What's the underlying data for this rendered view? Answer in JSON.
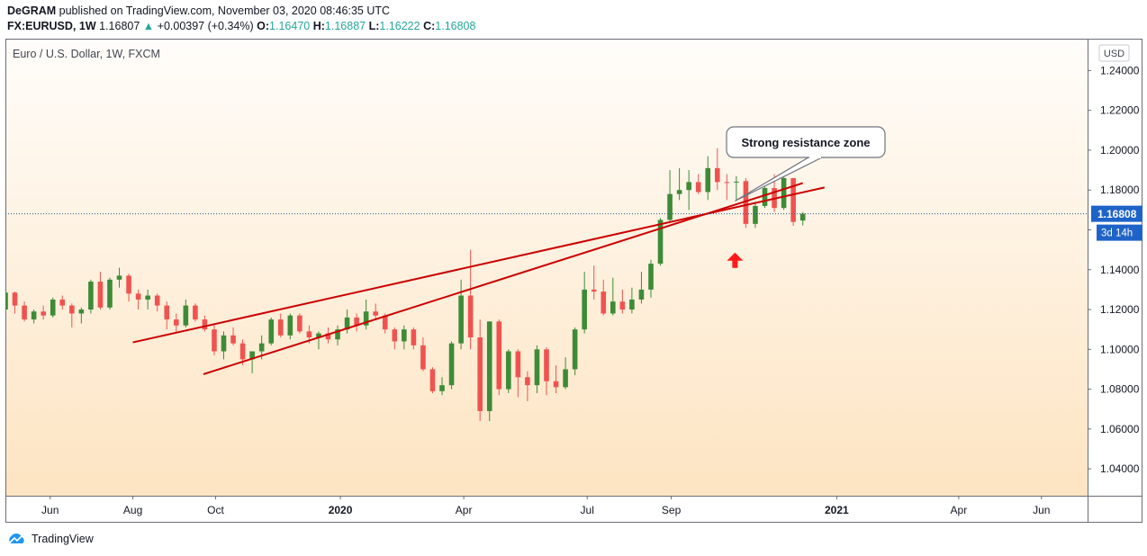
{
  "header": {
    "author": "DeGRAM",
    "published_text": "published on TradingView.com, November 03, 2020 08:46:35 UTC",
    "symbol": "FX:EURUSD, 1W",
    "last": "1.16807",
    "change": "+0.00397 (+0.34%)",
    "open_label": "O:",
    "open": "1.16470",
    "high_label": "H:",
    "high": "1.16887",
    "low_label": "L:",
    "low": "1.16222",
    "close_label": "C:",
    "close": "1.16808"
  },
  "footer": {
    "brand": "TradingView"
  },
  "colors": {
    "up": "#3d8b37",
    "down": "#ef5350",
    "trend": "#cc0000",
    "axis_label_bg": "#1e63c8"
  },
  "chart_data": {
    "type": "candlestick",
    "title": "Euro / U.S. Dollar, 1W, FXCM",
    "currency": "USD",
    "ylim": [
      1.0265,
      1.256
    ],
    "xlim": [
      "2019-04-29",
      "2021-07-05"
    ],
    "y_ticks": [
      "1.04000",
      "1.06000",
      "1.08000",
      "1.10000",
      "1.12000",
      "1.14000",
      "1.16000",
      "1.18000",
      "1.20000",
      "1.22000",
      "1.24000"
    ],
    "x_ticks": [
      {
        "date": "2019-06-01",
        "label": "Jun",
        "bold": false
      },
      {
        "date": "2019-08-01",
        "label": "Aug",
        "bold": false
      },
      {
        "date": "2019-10-01",
        "label": "Oct",
        "bold": false
      },
      {
        "date": "2020-01-01",
        "label": "2020",
        "bold": true
      },
      {
        "date": "2020-04-01",
        "label": "Apr",
        "bold": false
      },
      {
        "date": "2020-07-01",
        "label": "Jul",
        "bold": false
      },
      {
        "date": "2020-09-01",
        "label": "Sep",
        "bold": false
      },
      {
        "date": "2021-01-01",
        "label": "2021",
        "bold": true
      },
      {
        "date": "2021-04-01",
        "label": "Apr",
        "bold": false
      },
      {
        "date": "2021-06-01",
        "label": "Jun",
        "bold": false
      }
    ],
    "start_date": "2019-04-29",
    "candles": [
      [
        1.12,
        1.129,
        1.119,
        1.1285
      ],
      [
        1.1285,
        1.129,
        1.118,
        1.122
      ],
      [
        1.122,
        1.124,
        1.114,
        1.115
      ],
      [
        1.115,
        1.12,
        1.113,
        1.119
      ],
      [
        1.119,
        1.122,
        1.115,
        1.117
      ],
      [
        1.117,
        1.126,
        1.116,
        1.125
      ],
      [
        1.125,
        1.127,
        1.12,
        1.122
      ],
      [
        1.122,
        1.123,
        1.111,
        1.118
      ],
      [
        1.118,
        1.121,
        1.113,
        1.12
      ],
      [
        1.12,
        1.135,
        1.118,
        1.134
      ],
      [
        1.134,
        1.139,
        1.12,
        1.121
      ],
      [
        1.121,
        1.136,
        1.12,
        1.135
      ],
      [
        1.135,
        1.141,
        1.131,
        1.137
      ],
      [
        1.137,
        1.138,
        1.124,
        1.128
      ],
      [
        1.128,
        1.13,
        1.12,
        1.125
      ],
      [
        1.125,
        1.13,
        1.12,
        1.127
      ],
      [
        1.127,
        1.128,
        1.119,
        1.122
      ],
      [
        1.122,
        1.124,
        1.11,
        1.115
      ],
      [
        1.115,
        1.118,
        1.108,
        1.112
      ],
      [
        1.112,
        1.125,
        1.111,
        1.122
      ],
      [
        1.122,
        1.123,
        1.114,
        1.115
      ],
      [
        1.115,
        1.117,
        1.109,
        1.11
      ],
      [
        1.11,
        1.113,
        1.097,
        1.099
      ],
      [
        1.099,
        1.109,
        1.095,
        1.107
      ],
      [
        1.107,
        1.111,
        1.102,
        1.103
      ],
      [
        1.103,
        1.105,
        1.092,
        1.095
      ],
      [
        1.095,
        1.099,
        1.088,
        1.099
      ],
      [
        1.099,
        1.107,
        1.095,
        1.103
      ],
      [
        1.103,
        1.116,
        1.102,
        1.115
      ],
      [
        1.115,
        1.118,
        1.106,
        1.107
      ],
      [
        1.107,
        1.118,
        1.105,
        1.117
      ],
      [
        1.117,
        1.118,
        1.108,
        1.109
      ],
      [
        1.109,
        1.112,
        1.103,
        1.106
      ],
      [
        1.106,
        1.109,
        1.1,
        1.108
      ],
      [
        1.108,
        1.111,
        1.103,
        1.105
      ],
      [
        1.105,
        1.112,
        1.102,
        1.11
      ],
      [
        1.11,
        1.12,
        1.108,
        1.116
      ],
      [
        1.116,
        1.118,
        1.109,
        1.112
      ],
      [
        1.112,
        1.125,
        1.11,
        1.119
      ],
      [
        1.119,
        1.123,
        1.115,
        1.117
      ],
      [
        1.117,
        1.118,
        1.108,
        1.11
      ],
      [
        1.11,
        1.111,
        1.1,
        1.104
      ],
      [
        1.104,
        1.112,
        1.1,
        1.11
      ],
      [
        1.11,
        1.111,
        1.1,
        1.102
      ],
      [
        1.102,
        1.106,
        1.089,
        1.09
      ],
      [
        1.09,
        1.091,
        1.078,
        1.079
      ],
      [
        1.079,
        1.086,
        1.077,
        1.082
      ],
      [
        1.082,
        1.104,
        1.08,
        1.103
      ],
      [
        1.103,
        1.135,
        1.1,
        1.127
      ],
      [
        1.127,
        1.15,
        1.1,
        1.106
      ],
      [
        1.106,
        1.115,
        1.064,
        1.069
      ],
      [
        1.069,
        1.114,
        1.064,
        1.114
      ],
      [
        1.114,
        1.115,
        1.077,
        1.08
      ],
      [
        1.08,
        1.1,
        1.078,
        1.099
      ],
      [
        1.099,
        1.1,
        1.076,
        1.086
      ],
      [
        1.086,
        1.089,
        1.074,
        1.082
      ],
      [
        1.082,
        1.102,
        1.078,
        1.1
      ],
      [
        1.1,
        1.101,
        1.077,
        1.084
      ],
      [
        1.084,
        1.092,
        1.078,
        1.081
      ],
      [
        1.081,
        1.096,
        1.08,
        1.09
      ],
      [
        1.09,
        1.111,
        1.087,
        1.11
      ],
      [
        1.11,
        1.139,
        1.108,
        1.13
      ],
      [
        1.13,
        1.142,
        1.125,
        1.129
      ],
      [
        1.129,
        1.135,
        1.117,
        1.118
      ],
      [
        1.118,
        1.136,
        1.117,
        1.124
      ],
      [
        1.124,
        1.13,
        1.118,
        1.12
      ],
      [
        1.12,
        1.131,
        1.118,
        1.125
      ],
      [
        1.125,
        1.139,
        1.123,
        1.13
      ],
      [
        1.13,
        1.145,
        1.126,
        1.143
      ],
      [
        1.143,
        1.166,
        1.142,
        1.165
      ],
      [
        1.165,
        1.19,
        1.164,
        1.178
      ],
      [
        1.178,
        1.191,
        1.175,
        1.18
      ],
      [
        1.18,
        1.19,
        1.17,
        1.184
      ],
      [
        1.184,
        1.188,
        1.178,
        1.179
      ],
      [
        1.179,
        1.197,
        1.175,
        1.191
      ],
      [
        1.191,
        1.201,
        1.18,
        1.184
      ],
      [
        1.184,
        1.188,
        1.175,
        1.1838
      ],
      [
        1.1838,
        1.187,
        1.175,
        1.1842
      ],
      [
        1.1845,
        1.186,
        1.161,
        1.163
      ],
      [
        1.163,
        1.174,
        1.161,
        1.172
      ],
      [
        1.172,
        1.183,
        1.171,
        1.181
      ],
      [
        1.181,
        1.188,
        1.169,
        1.171
      ],
      [
        1.171,
        1.188,
        1.17,
        1.186
      ],
      [
        1.186,
        1.186,
        1.162,
        1.164
      ],
      [
        1.1647,
        1.1689,
        1.1622,
        1.1681
      ]
    ],
    "current_price": "1.16808",
    "countdown": "3d 14h",
    "trendlines": [
      {
        "from": [
          "2019-08-01",
          1.1035
        ],
        "to": [
          "2020-12-23",
          1.1813
        ]
      },
      {
        "from": [
          "2019-09-22",
          1.0875
        ],
        "to": [
          "2020-12-07",
          1.1835
        ]
      }
    ],
    "annotation": {
      "text": "Strong resistance zone",
      "target": [
        "2020-10-18",
        1.1745
      ]
    },
    "arrow": {
      "date": "2020-10-18",
      "price": 1.1445,
      "direction": "up"
    }
  }
}
